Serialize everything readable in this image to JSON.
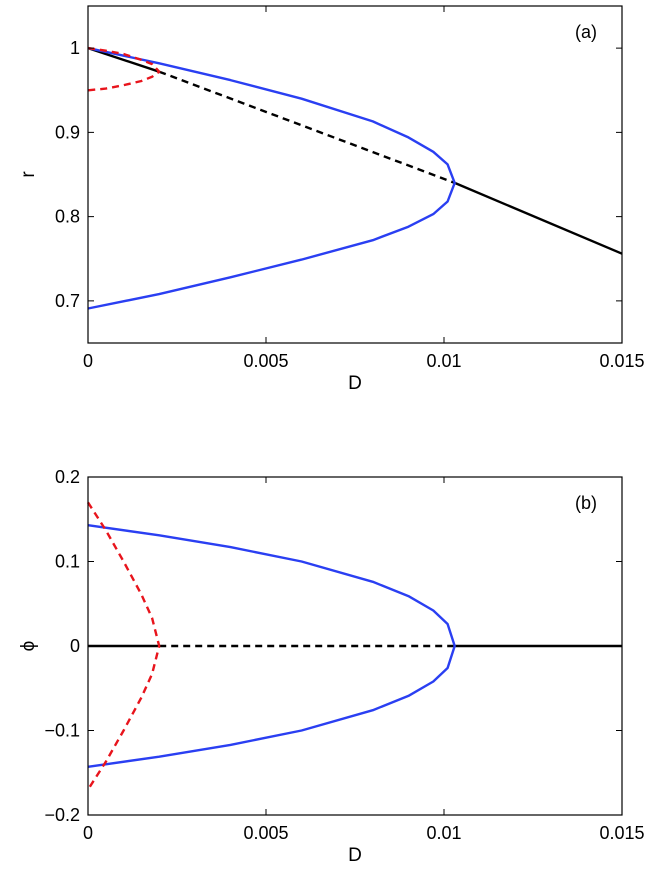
{
  "chart_data": [
    {
      "type": "line",
      "panel_label": "(a)",
      "xlabel": "D",
      "ylabel": "r",
      "xlim": [
        0,
        0.015
      ],
      "ylim": [
        0.65,
        1.05
      ],
      "xticks": [
        0,
        0.005,
        0.01,
        0.015
      ],
      "xtick_labels": [
        "0",
        "0.005",
        "0.01",
        "0.015"
      ],
      "yticks": [
        0.7,
        0.8,
        0.9,
        1.0
      ],
      "ytick_labels": [
        "0.7",
        "0.8",
        "0.9",
        "1"
      ],
      "grid": false,
      "series": [
        {
          "color": "#000000",
          "dashed": false,
          "x": [
            0,
            0.002
          ],
          "y": [
            1.0,
            0.972
          ]
        },
        {
          "color": "#000000",
          "dashed": true,
          "x": [
            0.002,
            0.0103
          ],
          "y": [
            0.972,
            0.84
          ]
        },
        {
          "color": "#000000",
          "dashed": false,
          "x": [
            0.0103,
            0.015
          ],
          "y": [
            0.84,
            0.756
          ]
        },
        {
          "color": "#2a3ff2",
          "dashed": false,
          "x": [
            0,
            0.002,
            0.004,
            0.006,
            0.008,
            0.009,
            0.0097,
            0.0101,
            0.0103,
            0.0101,
            0.0097,
            0.009,
            0.008,
            0.006,
            0.004,
            0.002,
            0
          ],
          "y": [
            1.0,
            0.982,
            0.962,
            0.94,
            0.913,
            0.894,
            0.877,
            0.862,
            0.84,
            0.818,
            0.803,
            0.788,
            0.772,
            0.749,
            0.728,
            0.708,
            0.691
          ]
        },
        {
          "color": "#e8141c",
          "dashed": true,
          "x": [
            0,
            0.0005,
            0.001,
            0.0015,
            0.0018,
            0.002,
            0.0018,
            0.0015,
            0.001,
            0.0005,
            0
          ],
          "y": [
            1.0,
            0.997,
            0.993,
            0.986,
            0.981,
            0.972,
            0.966,
            0.961,
            0.956,
            0.952,
            0.95
          ]
        }
      ]
    },
    {
      "type": "line",
      "panel_label": "(b)",
      "xlabel": "D",
      "ylabel": "ϕ",
      "xlim": [
        0,
        0.015
      ],
      "ylim": [
        -0.2,
        0.2
      ],
      "xticks": [
        0,
        0.005,
        0.01,
        0.015
      ],
      "xtick_labels": [
        "0",
        "0.005",
        "0.01",
        "0.015"
      ],
      "yticks": [
        -0.2,
        -0.1,
        0,
        0.1,
        0.2
      ],
      "ytick_labels": [
        "−0.2",
        "−0.1",
        "0",
        "0.1",
        "0.2"
      ],
      "grid": false,
      "series": [
        {
          "color": "#000000",
          "dashed": false,
          "x": [
            0,
            0.002
          ],
          "y": [
            0,
            0
          ]
        },
        {
          "color": "#000000",
          "dashed": true,
          "x": [
            0.002,
            0.0103
          ],
          "y": [
            0,
            0
          ]
        },
        {
          "color": "#000000",
          "dashed": false,
          "x": [
            0.0103,
            0.015
          ],
          "y": [
            0,
            0
          ]
        },
        {
          "color": "#2a3ff2",
          "dashed": false,
          "x": [
            0,
            0.002,
            0.004,
            0.006,
            0.008,
            0.009,
            0.0097,
            0.0101,
            0.0103,
            0.0101,
            0.0097,
            0.009,
            0.008,
            0.006,
            0.004,
            0.002,
            0
          ],
          "y": [
            0.143,
            0.131,
            0.117,
            0.1,
            0.076,
            0.059,
            0.042,
            0.026,
            0,
            -0.026,
            -0.042,
            -0.059,
            -0.076,
            -0.1,
            -0.117,
            -0.131,
            -0.143
          ]
        },
        {
          "color": "#e8141c",
          "dashed": true,
          "x": [
            0,
            0.0005,
            0.001,
            0.0015,
            0.0018,
            0.002,
            0.0018,
            0.0015,
            0.001,
            0.0005,
            0
          ],
          "y": [
            0.17,
            0.137,
            0.1,
            0.061,
            0.033,
            0,
            -0.033,
            -0.061,
            -0.1,
            -0.137,
            -0.17
          ]
        }
      ]
    }
  ]
}
